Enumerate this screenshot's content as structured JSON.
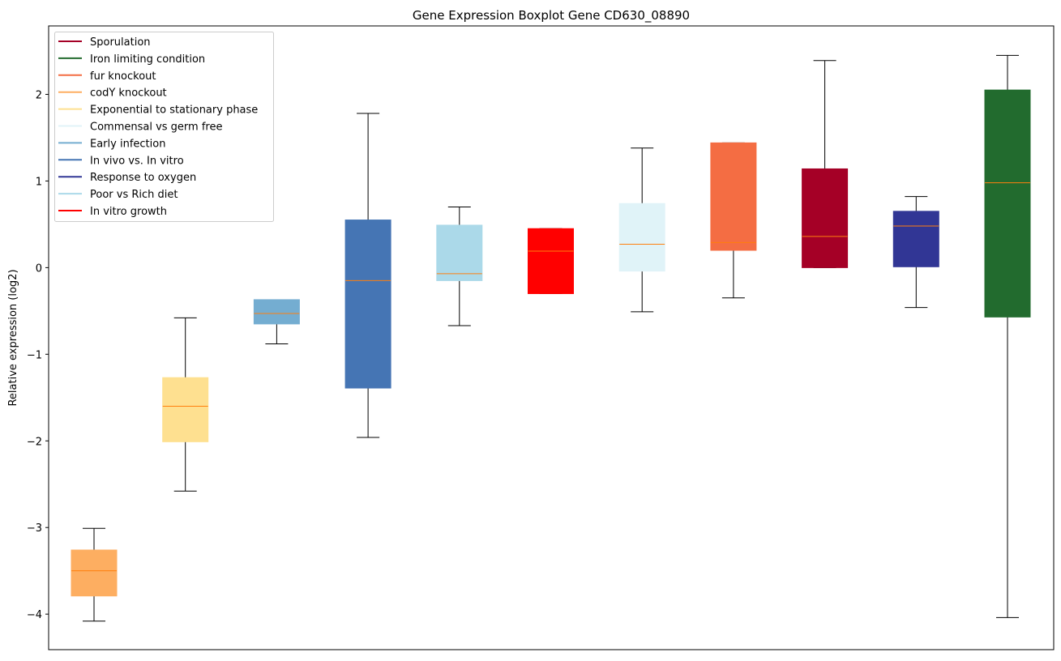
{
  "chart_data": {
    "type": "box",
    "title": "Gene Expression Boxplot Gene CD630_08890",
    "xlabel": "",
    "ylabel": "Relative expression (log2)",
    "ylim": [
      -4.41,
      2.79
    ],
    "yticks": [
      -4,
      -3,
      -2,
      -1,
      0,
      1,
      2
    ],
    "ytick_labels": [
      "−4",
      "−3",
      "−2",
      "−1",
      "0",
      "1",
      "2"
    ],
    "grid": false,
    "legend_position": "top-left",
    "median_color": "#ff7f0e",
    "boxes": [
      {
        "name": "codY knockout",
        "color": "#fdae61",
        "min": -4.08,
        "q1": -3.79,
        "median": -3.5,
        "q3": -3.26,
        "max": -3.01
      },
      {
        "name": "Exponential to stationary phase",
        "color": "#fee090",
        "min": -2.58,
        "q1": -2.01,
        "median": -1.6,
        "q3": -1.27,
        "max": -0.58
      },
      {
        "name": "Early infection",
        "color": "#74add1",
        "min": -0.88,
        "q1": -0.65,
        "median": -0.53,
        "q3": -0.37,
        "max": -0.37
      },
      {
        "name": "In vivo vs. In vitro",
        "color": "#4575b4",
        "min": -1.96,
        "q1": -1.39,
        "median": -0.15,
        "q3": 0.55,
        "max": 1.78
      },
      {
        "name": "Poor vs Rich diet",
        "color": "#abd9e9",
        "min": -0.67,
        "q1": -0.15,
        "median": -0.07,
        "q3": 0.49,
        "max": 0.7
      },
      {
        "name": "In vitro growth",
        "color": "#ff0000",
        "min": -0.3,
        "q1": -0.3,
        "median": 0.19,
        "q3": 0.45,
        "max": 0.45
      },
      {
        "name": "Commensal vs germ free",
        "color": "#e0f3f8",
        "min": -0.51,
        "q1": -0.04,
        "median": 0.27,
        "q3": 0.74,
        "max": 1.38
      },
      {
        "name": "fur knockout",
        "color": "#f46d43",
        "min": -0.35,
        "q1": 0.2,
        "median": 0.29,
        "q3": 1.44,
        "max": 1.44
      },
      {
        "name": "Sporulation",
        "color": "#a50026",
        "min": 0.0,
        "q1": 0.0,
        "median": 0.36,
        "q3": 1.14,
        "max": 2.39
      },
      {
        "name": "Response to oxygen",
        "color": "#313695",
        "min": -0.46,
        "q1": 0.01,
        "median": 0.48,
        "q3": 0.65,
        "max": 0.82
      },
      {
        "name": "Iron limiting condition",
        "color": "#226b2e",
        "min": -4.04,
        "q1": -0.57,
        "median": 0.98,
        "q3": 2.05,
        "max": 2.45
      }
    ],
    "legend": [
      {
        "label": "Sporulation",
        "color": "#a50026"
      },
      {
        "label": "Iron limiting condition",
        "color": "#226b2e"
      },
      {
        "label": "fur knockout",
        "color": "#f46d43"
      },
      {
        "label": "codY knockout",
        "color": "#fdae61"
      },
      {
        "label": "Exponential to stationary phase",
        "color": "#fee090"
      },
      {
        "label": "Commensal vs germ free",
        "color": "#e0f3f8"
      },
      {
        "label": "Early infection",
        "color": "#74add1"
      },
      {
        "label": "In vivo vs. In vitro",
        "color": "#4575b4"
      },
      {
        "label": "Response to oxygen",
        "color": "#313695"
      },
      {
        "label": "Poor vs Rich diet",
        "color": "#abd9e9"
      },
      {
        "label": "In vitro growth",
        "color": "#ff0000"
      }
    ]
  }
}
